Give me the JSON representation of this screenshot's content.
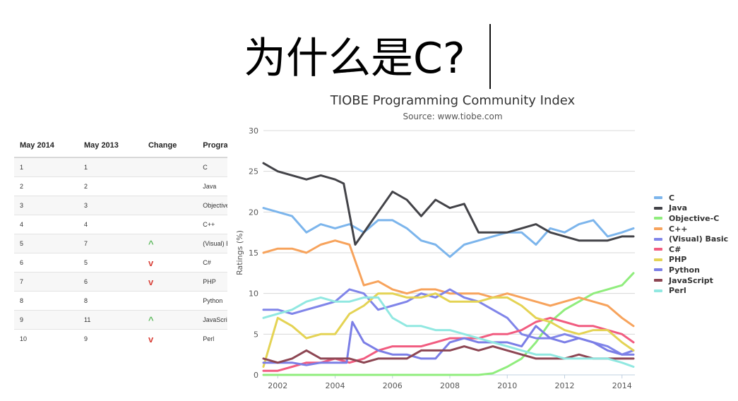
{
  "slide": {
    "title": "为什么是C?"
  },
  "table": {
    "headers": [
      "May 2014",
      "May 2013",
      "Change",
      "Programm"
    ],
    "rows": [
      {
        "may2014": "1",
        "may2013": "1",
        "change": "",
        "change_dir": "",
        "language": "C"
      },
      {
        "may2014": "2",
        "may2013": "2",
        "change": "",
        "change_dir": "",
        "language": "Java"
      },
      {
        "may2014": "3",
        "may2013": "3",
        "change": "",
        "change_dir": "",
        "language": "Objective-C"
      },
      {
        "may2014": "4",
        "may2013": "4",
        "change": "",
        "change_dir": "",
        "language": "C++"
      },
      {
        "may2014": "5",
        "may2013": "7",
        "change": "^",
        "change_dir": "up",
        "language": "(Visual) Basi"
      },
      {
        "may2014": "6",
        "may2013": "5",
        "change": "v",
        "change_dir": "down",
        "language": "C#"
      },
      {
        "may2014": "7",
        "may2013": "6",
        "change": "v",
        "change_dir": "down",
        "language": "PHP"
      },
      {
        "may2014": "8",
        "may2013": "8",
        "change": "",
        "change_dir": "",
        "language": "Python"
      },
      {
        "may2014": "9",
        "may2013": "11",
        "change": "^",
        "change_dir": "up",
        "language": "JavaScript"
      },
      {
        "may2014": "10",
        "may2013": "9",
        "change": "v",
        "change_dir": "down",
        "language": "Perl"
      }
    ]
  },
  "chart_data": {
    "type": "line",
    "title": "TIOBE Programming Community Index",
    "subtitle": "Source: www.tiobe.com",
    "xlabel": "",
    "ylabel": "Ratings (%)",
    "xlim": [
      2001.5,
      2014.45
    ],
    "ylim": [
      0,
      30
    ],
    "xticks": [
      "2002",
      "2004",
      "2006",
      "2008",
      "2010",
      "2012",
      "2014"
    ],
    "yticks": [
      "0",
      "5",
      "10",
      "15",
      "20",
      "25",
      "30"
    ],
    "grid": true,
    "legend_position": "right",
    "series": [
      {
        "name": "C",
        "color": "#7cb5ec",
        "x": [
          2001.5,
          2002,
          2002.5,
          2003,
          2003.5,
          2004,
          2004.5,
          2005,
          2005.5,
          2006,
          2006.5,
          2007,
          2007.5,
          2008,
          2008.5,
          2009,
          2009.5,
          2010,
          2010.5,
          2011,
          2011.5,
          2012,
          2012.5,
          2013,
          2013.5,
          2014,
          2014.4
        ],
        "values": [
          20.5,
          20,
          19.5,
          17.5,
          18.5,
          18,
          18.5,
          17.5,
          19,
          19,
          18,
          16.5,
          16,
          14.5,
          16,
          16.5,
          17,
          17.5,
          17.5,
          16,
          18,
          17.5,
          18.5,
          19,
          17,
          17.5,
          18
        ]
      },
      {
        "name": "Java",
        "color": "#434348",
        "x": [
          2001.5,
          2002,
          2002.5,
          2003,
          2003.5,
          2004,
          2004.3,
          2004.7,
          2005,
          2005.5,
          2006,
          2006.5,
          2007,
          2007.5,
          2008,
          2008.5,
          2009,
          2009.5,
          2010,
          2010.5,
          2011,
          2011.5,
          2012,
          2012.5,
          2013,
          2013.5,
          2014,
          2014.4
        ],
        "values": [
          26,
          25,
          24.5,
          24,
          24.5,
          24,
          23.5,
          16,
          17.5,
          20,
          22.5,
          21.5,
          19.5,
          21.5,
          20.5,
          21,
          17.5,
          17.5,
          17.5,
          18,
          18.5,
          17.5,
          17,
          16.5,
          16.5,
          16.5,
          17,
          17
        ]
      },
      {
        "name": "Objective-C",
        "color": "#90ed7d",
        "x": [
          2001.5,
          2002,
          2003,
          2004,
          2005,
          2006,
          2007,
          2008,
          2009,
          2009.5,
          2010,
          2010.5,
          2011,
          2011.5,
          2012,
          2012.5,
          2013,
          2013.5,
          2014,
          2014.4
        ],
        "values": [
          0,
          0,
          0,
          0,
          0,
          0,
          0,
          0,
          0,
          0.2,
          1,
          2,
          4,
          6.5,
          8,
          9,
          10,
          10.5,
          11,
          12.5
        ]
      },
      {
        "name": "C++",
        "color": "#f7a35c",
        "x": [
          2001.5,
          2002,
          2002.5,
          2003,
          2003.5,
          2004,
          2004.5,
          2005,
          2005.5,
          2006,
          2006.5,
          2007,
          2007.5,
          2008,
          2008.5,
          2009,
          2009.5,
          2010,
          2010.5,
          2011,
          2011.5,
          2012,
          2012.5,
          2013,
          2013.5,
          2014,
          2014.4
        ],
        "values": [
          15,
          15.5,
          15.5,
          15,
          16,
          16.5,
          16,
          11,
          11.5,
          10.5,
          10,
          10.5,
          10.5,
          10,
          10,
          10,
          9.5,
          10,
          9.5,
          9,
          8.5,
          9,
          9.5,
          9,
          8.5,
          7,
          6
        ]
      },
      {
        "name": "(Visual) Basic",
        "color": "#8085e9",
        "x": [
          2001.5,
          2002,
          2002.5,
          2003,
          2003.5,
          2004,
          2004.5,
          2005,
          2005.5,
          2006,
          2006.5,
          2007,
          2007.5,
          2008,
          2008.5,
          2009,
          2009.5,
          2010,
          2010.5,
          2011,
          2011.5,
          2012,
          2012.5,
          2013,
          2013.5,
          2014,
          2014.4
        ],
        "values": [
          8,
          8,
          7.5,
          8,
          8.5,
          9,
          10.5,
          10,
          8,
          8.5,
          9,
          10,
          9.5,
          10.5,
          9.5,
          9,
          8,
          7,
          5,
          4.5,
          4.5,
          5,
          4.5,
          4,
          3.5,
          2.5,
          3
        ]
      },
      {
        "name": "C#",
        "color": "#f15c80",
        "x": [
          2001.5,
          2002,
          2002.5,
          2003,
          2003.5,
          2004,
          2004.5,
          2005,
          2005.5,
          2006,
          2006.5,
          2007,
          2007.5,
          2008,
          2008.5,
          2009,
          2009.5,
          2010,
          2010.5,
          2011,
          2011.5,
          2012,
          2012.5,
          2013,
          2013.5,
          2014,
          2014.4
        ],
        "values": [
          0.5,
          0.5,
          1,
          1.5,
          1.5,
          2,
          1.5,
          2,
          3,
          3.5,
          3.5,
          3.5,
          4,
          4.5,
          4.5,
          4.5,
          5,
          5,
          5.5,
          6.5,
          7,
          6.5,
          6,
          6,
          5.5,
          5,
          4
        ]
      },
      {
        "name": "PHP",
        "color": "#e4d354",
        "x": [
          2001.5,
          2002,
          2002.5,
          2003,
          2003.5,
          2004,
          2004.5,
          2005,
          2005.5,
          2006,
          2006.5,
          2007,
          2007.5,
          2008,
          2008.5,
          2009,
          2009.5,
          2010,
          2010.5,
          2011,
          2011.5,
          2012,
          2012.5,
          2013,
          2013.5,
          2014,
          2014.4
        ],
        "values": [
          1,
          7,
          6,
          4.5,
          5,
          5,
          7.5,
          8.5,
          10,
          10,
          9.5,
          9.5,
          10,
          9,
          9,
          9,
          9.5,
          9.5,
          8.5,
          7,
          6.5,
          5.5,
          5,
          5.5,
          5.5,
          4,
          3
        ]
      },
      {
        "name": "Python",
        "color": "#7b7ee6",
        "x": [
          2001.5,
          2002,
          2002.5,
          2003,
          2003.5,
          2004,
          2004.4,
          2004.6,
          2005,
          2005.5,
          2006,
          2006.5,
          2007,
          2007.5,
          2008,
          2008.5,
          2009,
          2009.5,
          2010,
          2010.5,
          2011,
          2011.5,
          2012,
          2012.5,
          2013,
          2013.5,
          2014,
          2014.4
        ],
        "values": [
          1.5,
          1.5,
          1.5,
          1.2,
          1.5,
          1.5,
          1.5,
          6.5,
          4,
          3,
          2.5,
          2.5,
          2,
          2,
          4,
          4.5,
          4,
          4,
          4,
          3.5,
          6,
          4.5,
          4,
          4.5,
          4,
          3,
          2.5,
          2.5
        ]
      },
      {
        "name": "JavaScript",
        "color": "#8d4653",
        "x": [
          2001.5,
          2002,
          2002.5,
          2003,
          2003.5,
          2004,
          2004.5,
          2005,
          2005.5,
          2006,
          2006.5,
          2007,
          2007.5,
          2008,
          2008.5,
          2009,
          2009.5,
          2010,
          2010.5,
          2011,
          2011.5,
          2012,
          2012.5,
          2013,
          2013.5,
          2014,
          2014.4
        ],
        "values": [
          2,
          1.5,
          2,
          3,
          2,
          2,
          2,
          1.5,
          2,
          2,
          2,
          3,
          3,
          3,
          3.5,
          3,
          3.5,
          3,
          2.5,
          2,
          2,
          2,
          2.5,
          2,
          2,
          2,
          2
        ]
      },
      {
        "name": "Perl",
        "color": "#91e8e1",
        "x": [
          2001.5,
          2002,
          2002.5,
          2003,
          2003.5,
          2004,
          2004.5,
          2005,
          2005.5,
          2006,
          2006.5,
          2007,
          2007.5,
          2008,
          2008.5,
          2009,
          2009.5,
          2010,
          2010.5,
          2011,
          2011.5,
          2012,
          2012.5,
          2013,
          2013.5,
          2014,
          2014.4
        ],
        "values": [
          7,
          7.5,
          8,
          9,
          9.5,
          9,
          9,
          9.5,
          9.5,
          7,
          6,
          6,
          5.5,
          5.5,
          5,
          4.5,
          4,
          3.5,
          3,
          2.5,
          2.5,
          2,
          2,
          2,
          2,
          1.5,
          1
        ]
      }
    ]
  }
}
